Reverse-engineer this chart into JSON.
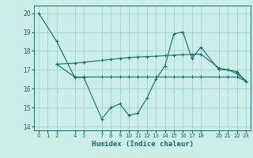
{
  "title": "",
  "xlabel": "Humidex (Indice chaleur)",
  "bg_color": "#cceee8",
  "line_color": "#1a6b6b",
  "grid_color": "#99cccc",
  "xlim": [
    -0.5,
    23.5
  ],
  "ylim": [
    13.8,
    20.4
  ],
  "yticks": [
    14,
    15,
    16,
    17,
    18,
    19,
    20
  ],
  "xticks": [
    0,
    1,
    2,
    4,
    5,
    7,
    8,
    9,
    10,
    11,
    12,
    13,
    14,
    15,
    16,
    17,
    18,
    20,
    21,
    22,
    23
  ],
  "series1_x": [
    0,
    2,
    4,
    5,
    7,
    8,
    9,
    10,
    11,
    12,
    13,
    14,
    15,
    16,
    17,
    18,
    20,
    21,
    22,
    23
  ],
  "series1_y": [
    20.0,
    18.5,
    16.6,
    16.6,
    14.4,
    15.0,
    15.2,
    14.6,
    14.7,
    15.5,
    16.5,
    17.2,
    18.9,
    19.0,
    17.6,
    18.2,
    17.0,
    17.0,
    16.8,
    16.4
  ],
  "series2_x": [
    2,
    4,
    5,
    7,
    8,
    9,
    10,
    11,
    12,
    13,
    14,
    15,
    16,
    17,
    18,
    20,
    21,
    22,
    23
  ],
  "series2_y": [
    17.3,
    17.35,
    17.4,
    17.5,
    17.55,
    17.6,
    17.65,
    17.68,
    17.7,
    17.72,
    17.75,
    17.78,
    17.8,
    17.82,
    17.83,
    17.1,
    17.0,
    16.9,
    16.4
  ],
  "series3_x": [
    2,
    4,
    5,
    7,
    8,
    9,
    10,
    11,
    12,
    13,
    14,
    15,
    16,
    17,
    18,
    20,
    21,
    22,
    23
  ],
  "series3_y": [
    17.3,
    16.62,
    16.62,
    16.62,
    16.62,
    16.62,
    16.62,
    16.62,
    16.62,
    16.62,
    16.62,
    16.62,
    16.62,
    16.62,
    16.62,
    16.62,
    16.62,
    16.62,
    16.4
  ]
}
